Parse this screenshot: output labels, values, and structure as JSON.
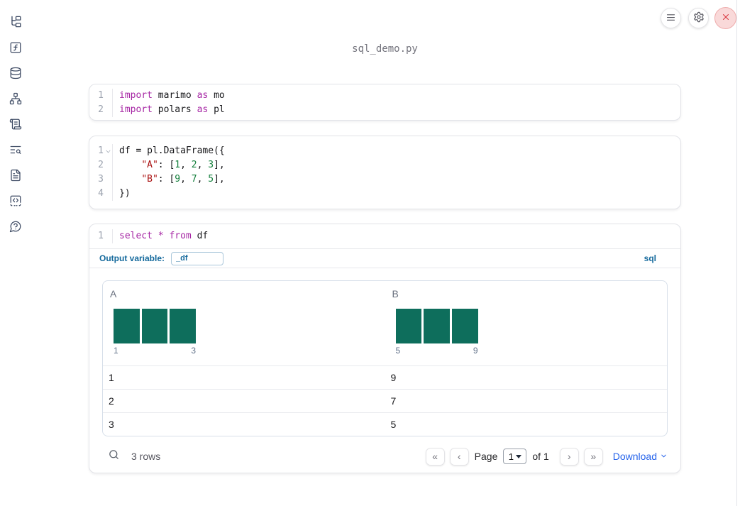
{
  "window": {
    "title": "sql_demo.py"
  },
  "toolbar": {
    "buttons": [
      {
        "id": "menu",
        "icon": "hamburger-menu-icon"
      },
      {
        "id": "settings",
        "icon": "gear-icon"
      },
      {
        "id": "shutdown",
        "icon": "close-icon"
      }
    ]
  },
  "sidebar": {
    "items": [
      {
        "id": "explorer",
        "icon": "file-tree-icon"
      },
      {
        "id": "variables",
        "icon": "function-square-icon"
      },
      {
        "id": "datasources",
        "icon": "database-icon"
      },
      {
        "id": "dependencies",
        "icon": "network-graph-icon"
      },
      {
        "id": "logs",
        "icon": "scroll-text-icon"
      },
      {
        "id": "tracing",
        "icon": "text-search-icon"
      },
      {
        "id": "documentation",
        "icon": "file-text-icon"
      },
      {
        "id": "snippets",
        "icon": "code-square-icon"
      },
      {
        "id": "help",
        "icon": "help-bubble-icon"
      }
    ]
  },
  "cells": [
    {
      "id": "imports-cell",
      "lines": [
        {
          "n": "1",
          "fold": false,
          "tokens": [
            [
              "kw",
              "import"
            ],
            [
              "pl",
              " marimo "
            ],
            [
              "kw",
              "as"
            ],
            [
              "pl",
              " mo"
            ]
          ]
        },
        {
          "n": "2",
          "fold": false,
          "tokens": [
            [
              "kw",
              "import"
            ],
            [
              "pl",
              " polars "
            ],
            [
              "kw",
              "as"
            ],
            [
              "pl",
              " pl"
            ]
          ]
        }
      ]
    },
    {
      "id": "dataframe-cell",
      "lines": [
        {
          "n": "1",
          "fold": true,
          "tokens": [
            [
              "pl",
              "df = pl.DataFrame({"
            ]
          ]
        },
        {
          "n": "2",
          "fold": false,
          "tokens": [
            [
              "pl",
              "    "
            ],
            [
              "str",
              "\"A\""
            ],
            [
              "pl",
              ": ["
            ],
            [
              "num",
              "1"
            ],
            [
              "pl",
              ", "
            ],
            [
              "num",
              "2"
            ],
            [
              "pl",
              ", "
            ],
            [
              "num",
              "3"
            ],
            [
              "pl",
              "],"
            ]
          ]
        },
        {
          "n": "3",
          "fold": false,
          "tokens": [
            [
              "pl",
              "    "
            ],
            [
              "str",
              "\"B\""
            ],
            [
              "pl",
              ": ["
            ],
            [
              "num",
              "9"
            ],
            [
              "pl",
              ", "
            ],
            [
              "num",
              "7"
            ],
            [
              "pl",
              ", "
            ],
            [
              "num",
              "5"
            ],
            [
              "pl",
              "],"
            ]
          ]
        },
        {
          "n": "4",
          "fold": false,
          "tokens": [
            [
              "pl",
              "})"
            ]
          ]
        }
      ]
    },
    {
      "id": "sql-cell",
      "lines": [
        {
          "n": "1",
          "fold": false,
          "tokens": [
            [
              "kw",
              "select"
            ],
            [
              "pl",
              " "
            ],
            [
              "kw",
              "*"
            ],
            [
              "pl",
              " "
            ],
            [
              "kw",
              "from"
            ],
            [
              "pl",
              " df"
            ]
          ]
        }
      ]
    }
  ],
  "sql_cell": {
    "output_variable_label": "Output variable:",
    "output_variable_value": "_df",
    "language_badge": "sql"
  },
  "table": {
    "columns": [
      {
        "label": "A",
        "hist_min": "1",
        "hist_max": "3",
        "bars": [
          1,
          1,
          1
        ]
      },
      {
        "label": "B",
        "hist_min": "5",
        "hist_max": "9",
        "bars": [
          1,
          1,
          1
        ]
      }
    ],
    "rows": [
      [
        "1",
        "9"
      ],
      [
        "2",
        "7"
      ],
      [
        "3",
        "5"
      ]
    ],
    "footer": {
      "row_count": "3 rows",
      "first_page": "«",
      "prev_page": "‹",
      "page_label": "Page",
      "page_value": "1",
      "of_label": "of 1",
      "next_page": "›",
      "last_page": "»",
      "download_label": "Download"
    }
  },
  "chart_data": [
    {
      "type": "bar",
      "title": "Column A histogram",
      "categories": [
        "1",
        "2",
        "3"
      ],
      "values": [
        1,
        1,
        1
      ],
      "xlabel_min": "1",
      "xlabel_max": "3",
      "color": "#0e6e5c"
    },
    {
      "type": "bar",
      "title": "Column B histogram",
      "categories": [
        "5",
        "7",
        "9"
      ],
      "values": [
        1,
        1,
        1
      ],
      "xlabel_min": "5",
      "xlabel_max": "9",
      "color": "#0e6e5c"
    }
  ],
  "colors": {
    "keyword": "#a626a4",
    "string": "#aa1111",
    "number": "#15803d",
    "accent_blue": "#14699c",
    "link_blue": "#2563eb",
    "bar_green": "#0e6e5c",
    "danger_red": "#d8383f"
  }
}
